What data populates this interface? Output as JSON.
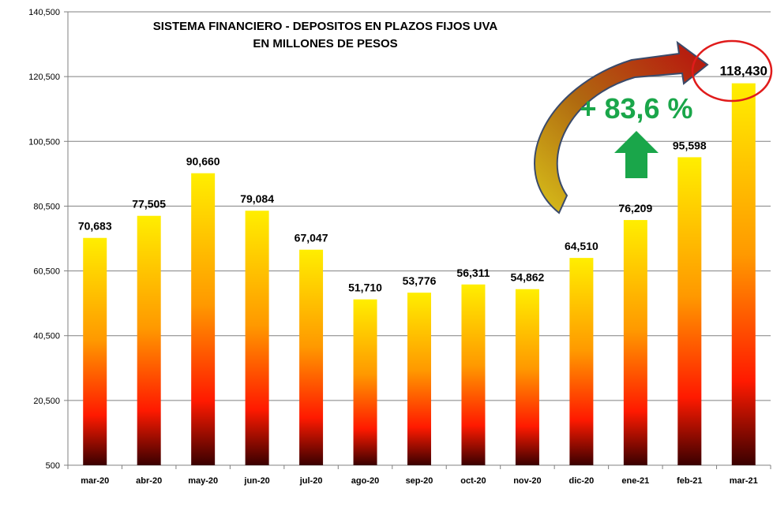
{
  "chart_data": {
    "type": "bar",
    "title": "SISTEMA FINANCIERO  - DEPOSITOS EN PLAZOS FIJOS UVA",
    "subtitle": "EN MILLONES DE PESOS",
    "categories": [
      "mar-20",
      "abr-20",
      "may-20",
      "jun-20",
      "jul-20",
      "ago-20",
      "sep-20",
      "oct-20",
      "nov-20",
      "dic-20",
      "ene-21",
      "feb-21",
      "mar-21"
    ],
    "values": [
      70683,
      77505,
      90660,
      79084,
      67047,
      51710,
      53776,
      56311,
      54862,
      64510,
      76209,
      95598,
      118430
    ],
    "value_labels": [
      "70,683",
      "77,505",
      "90,660",
      "79,084",
      "67,047",
      "51,710",
      "53,776",
      "56,311",
      "54,862",
      "64,510",
      "76,209",
      "95,598",
      "118,430"
    ],
    "ylim": [
      500,
      140500
    ],
    "yticks": [
      500,
      20500,
      40500,
      60500,
      80500,
      100500,
      120500,
      140500
    ],
    "ytick_labels": [
      "500",
      "20,500",
      "40,500",
      "60,500",
      "80,500",
      "100,500",
      "120,500",
      "140,500"
    ],
    "grid": true,
    "xlabel": "",
    "ylabel": ""
  },
  "annotation": {
    "growth_label": "+ 83,6 %",
    "growth_color": "#1aa64a",
    "highlight_circle_color": "#e01b1b",
    "arrow_icon": "curved-arrow-icon",
    "up_arrow_icon": "up-arrow-icon"
  },
  "colors": {
    "bar_top": "#ffee00",
    "bar_mid": "#ff9900",
    "bar_red": "#ff1a00",
    "bar_bottom": "#3a0000",
    "grid": "#808080"
  }
}
